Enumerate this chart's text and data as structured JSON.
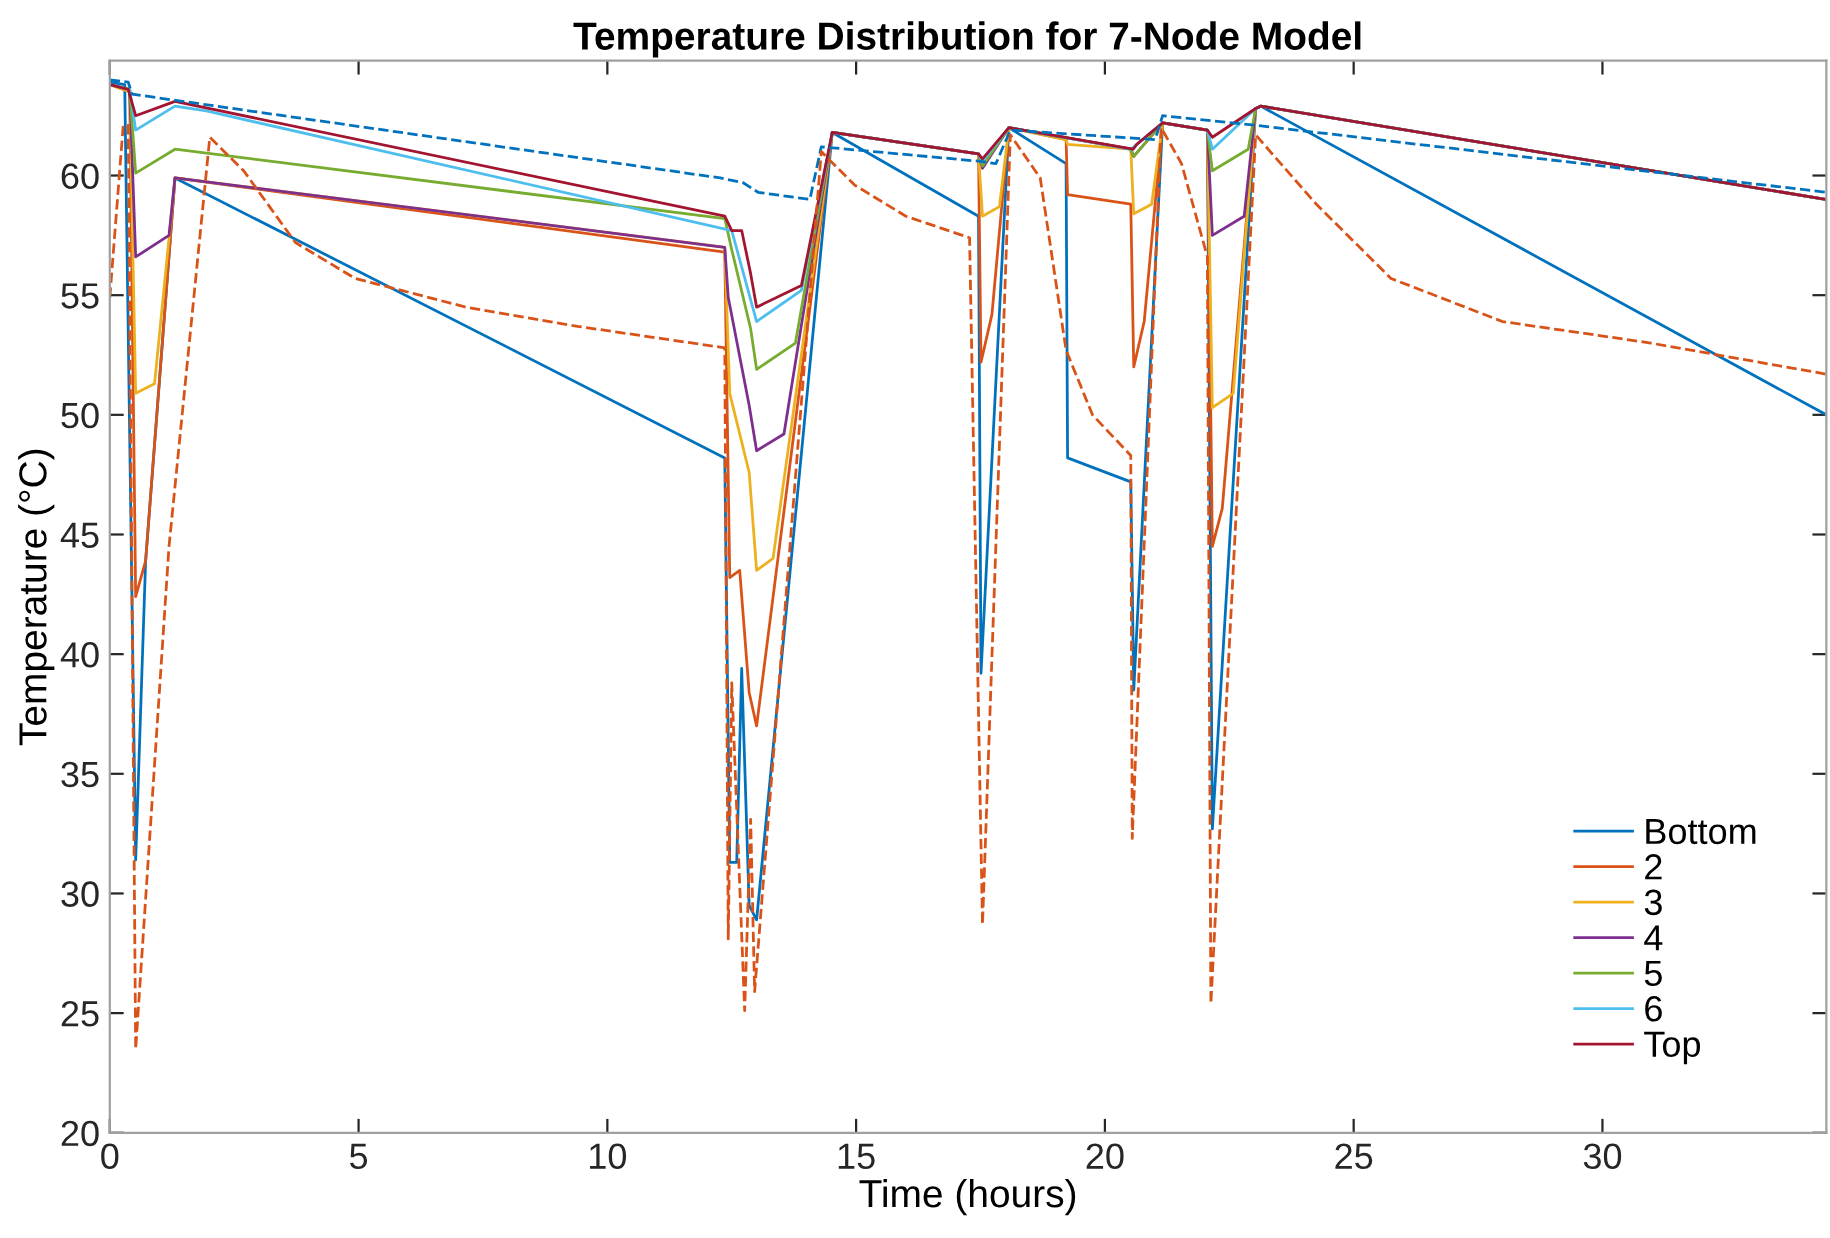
{
  "chart_data": {
    "type": "line",
    "title": "Temperature Distribution for 7-Node Model",
    "xlabel": "Time (hours)",
    "ylabel": "Temperature (°C)",
    "xlim": [
      0,
      34.5
    ],
    "ylim": [
      20,
      64.8
    ],
    "xticks": [
      0,
      5,
      10,
      15,
      20,
      25,
      30
    ],
    "yticks": [
      20,
      25,
      30,
      35,
      40,
      45,
      50,
      55,
      60
    ],
    "grid": false,
    "legend": "bottom right",
    "marker": "none",
    "line_style": "solid",
    "series": [
      {
        "name": "Bottom",
        "color": "#0072bd",
        "x": [
          0,
          0.3,
          0.52,
          0.72,
          1.31,
          12.36,
          12.46,
          12.6,
          12.7,
          12.85,
          13.0,
          14.52,
          17.46,
          17.51,
          18.07,
          19.22,
          19.25,
          20.52,
          20.58,
          21.16,
          22.06,
          22.16,
          23.03,
          23.13,
          34.5
        ],
        "values": [
          63.9,
          63.8,
          31.4,
          43.9,
          59.9,
          48.2,
          31.3,
          31.3,
          39.4,
          29.5,
          28.9,
          61.8,
          58.3,
          39.2,
          62.0,
          60.5,
          48.2,
          47.2,
          38.5,
          62.2,
          61.9,
          32.7,
          62.8,
          62.9,
          50.0
        ]
      },
      {
        "name": "2",
        "color": "#d95319",
        "x": [
          0,
          0.4,
          0.52,
          0.72,
          1.31,
          12.36,
          12.46,
          12.66,
          12.85,
          13.0,
          14.52,
          17.46,
          17.51,
          17.73,
          18.07,
          19.22,
          19.25,
          20.52,
          20.58,
          20.79,
          21.16,
          22.06,
          22.16,
          22.36,
          23.03,
          23.13,
          34.5
        ],
        "values": [
          63.8,
          63.5,
          42.4,
          43.9,
          59.9,
          56.8,
          43.2,
          43.5,
          38.4,
          37.0,
          61.8,
          60.9,
          52.2,
          54.2,
          62.0,
          61.5,
          59.2,
          58.8,
          52.0,
          53.9,
          62.2,
          61.9,
          44.5,
          46.1,
          62.8,
          62.9,
          59.0
        ]
      },
      {
        "name": "3",
        "color": "#edb120",
        "x": [
          0,
          0.4,
          0.52,
          0.9,
          1.31,
          12.36,
          12.46,
          12.85,
          13.0,
          13.33,
          14.52,
          17.46,
          17.54,
          17.88,
          18.07,
          19.22,
          19.25,
          20.52,
          20.58,
          20.94,
          21.16,
          22.06,
          22.16,
          22.58,
          23.03,
          23.13,
          34.5
        ],
        "values": [
          63.8,
          63.5,
          50.9,
          51.3,
          59.9,
          57.0,
          50.9,
          47.6,
          43.5,
          44.0,
          61.8,
          60.9,
          58.3,
          58.7,
          62.0,
          61.5,
          61.3,
          61.1,
          58.4,
          58.8,
          62.2,
          61.9,
          50.3,
          50.9,
          62.8,
          62.9,
          59.0
        ]
      },
      {
        "name": "4",
        "color": "#7e2f8e",
        "x": [
          0,
          0.4,
          0.52,
          1.19,
          1.31,
          12.36,
          12.43,
          12.85,
          13.0,
          13.55,
          14.52,
          17.46,
          17.54,
          18.07,
          20.52,
          20.58,
          21.16,
          22.06,
          22.16,
          22.8,
          23.03,
          23.13,
          34.5
        ],
        "values": [
          63.8,
          63.6,
          56.6,
          57.5,
          59.9,
          57.0,
          54.9,
          50.4,
          48.5,
          49.2,
          61.8,
          60.9,
          60.3,
          62.0,
          61.1,
          60.8,
          62.2,
          61.9,
          57.5,
          58.3,
          62.8,
          62.9,
          59.0
        ]
      },
      {
        "name": "5",
        "color": "#77ac30",
        "x": [
          0,
          0.4,
          0.52,
          1.31,
          12.36,
          12.5,
          12.88,
          13.0,
          13.78,
          14.52,
          17.46,
          17.54,
          18.07,
          20.52,
          20.58,
          21.16,
          22.06,
          22.16,
          22.88,
          23.03,
          23.13,
          34.5
        ],
        "values": [
          63.8,
          63.6,
          60.1,
          61.1,
          58.2,
          56.9,
          53.6,
          51.9,
          53.0,
          61.8,
          60.9,
          60.4,
          62.0,
          61.1,
          60.8,
          62.2,
          61.9,
          60.2,
          61.1,
          62.8,
          62.9,
          59.0
        ]
      },
      {
        "name": "6",
        "color": "#4dbeee",
        "x": [
          0,
          0.4,
          0.52,
          1.31,
          1.94,
          12.5,
          13.0,
          13.9,
          14.52,
          17.46,
          17.54,
          18.07,
          20.52,
          20.58,
          21.16,
          22.06,
          22.16,
          23.03,
          23.13,
          34.5
        ],
        "values": [
          63.8,
          63.6,
          61.9,
          62.9,
          62.7,
          57.7,
          53.9,
          55.2,
          61.8,
          60.9,
          60.6,
          62.0,
          61.1,
          61.2,
          62.2,
          61.9,
          61.1,
          62.8,
          62.9,
          59.0
        ]
      },
      {
        "name": "Top",
        "color": "#a2142f",
        "x": [
          0,
          0.37,
          0.52,
          1.31,
          12.36,
          12.5,
          12.7,
          12.88,
          13.0,
          13.9,
          14.52,
          17.46,
          17.54,
          18.07,
          20.57,
          20.64,
          21.16,
          22.06,
          22.16,
          23.03,
          23.13,
          34.5
        ],
        "values": [
          63.8,
          63.6,
          62.5,
          63.1,
          58.3,
          57.7,
          57.7,
          55.9,
          54.5,
          55.4,
          61.8,
          60.9,
          60.7,
          62.0,
          61.1,
          61.3,
          62.2,
          61.9,
          61.6,
          62.8,
          62.9,
          59.0
        ]
      },
      {
        "color": "#0072bd",
        "line_style": "dashed",
        "x": [
          0,
          0.37,
          0.45,
          12.27,
          12.73,
          13.03,
          14.07,
          14.3,
          17.46,
          17.81,
          18.1,
          21.01,
          21.16,
          23.03,
          34.5
        ],
        "values": [
          64.0,
          63.9,
          63.4,
          59.9,
          59.7,
          59.3,
          59.0,
          61.2,
          60.6,
          60.5,
          61.9,
          61.5,
          62.5,
          62.1,
          59.3
        ]
      },
      {
        "color": "#d95319",
        "line_style": "dashed",
        "x": [
          0,
          0.27,
          0.37,
          0.52,
          1.19,
          2.01,
          2.69,
          3.73,
          4.93,
          7.16,
          9.4,
          12.36,
          12.43,
          12.5,
          12.76,
          12.88,
          12.96,
          14.3,
          14.97,
          16.0,
          17.28,
          17.54,
          18.1,
          18.7,
          19.22,
          19.75,
          20.52,
          20.55,
          21.13,
          21.54,
          22.06,
          22.13,
          23.03,
          24.25,
          25.75,
          27.99,
          30.97,
          34.5
        ],
        "values": [
          54.9,
          62.1,
          62.1,
          23.5,
          44.5,
          61.6,
          60.2,
          57.2,
          55.7,
          54.5,
          53.7,
          52.8,
          28.1,
          38.8,
          25.1,
          33.1,
          25.9,
          61.0,
          59.6,
          58.3,
          57.4,
          28.7,
          61.7,
          59.9,
          52.7,
          50.0,
          48.3,
          32.3,
          62.0,
          60.5,
          56.6,
          25.4,
          61.7,
          58.8,
          55.7,
          53.9,
          53.0,
          51.7
        ]
      }
    ]
  }
}
